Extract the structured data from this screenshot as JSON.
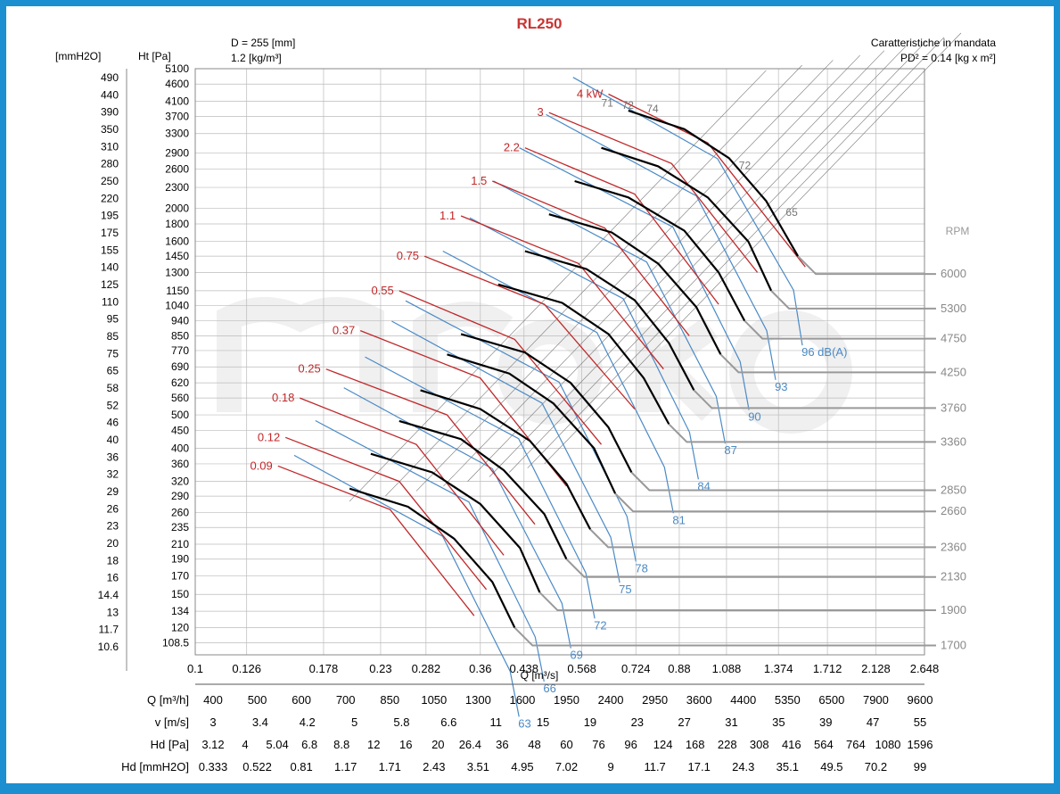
{
  "chart_data": {
    "type": "line",
    "title": "RL250",
    "subtitle_left": [
      "D = 255 [mm]",
      "1.2 [kg/m³]"
    ],
    "subtitle_right": [
      "Caratteristiche in mandata",
      "PD² = 0.14 [kg x m²]"
    ],
    "ylabel_left": "[mmH2O]",
    "ylabel_right": "Ht [Pa]",
    "xlabel": "Q [m³/s]",
    "rpm_label": "RPM",
    "y_scale": "log",
    "x_scale": "log",
    "ylim": [
      100,
      5100
    ],
    "xlim": [
      0.1,
      2.648
    ],
    "y_ticks_pa": [
      5100,
      4600,
      4100,
      3700,
      3300,
      2900,
      2600,
      2300,
      2000,
      1800,
      1600,
      1450,
      1300,
      1150,
      1040,
      940,
      850,
      770,
      690,
      620,
      560,
      500,
      450,
      400,
      360,
      320,
      290,
      260,
      235,
      210,
      190,
      170,
      150,
      134,
      120,
      108.5
    ],
    "y_ticks_mmh2o": [
      490,
      440,
      390,
      350,
      310,
      280,
      250,
      220,
      195,
      175,
      155,
      140,
      125,
      110,
      95,
      85,
      75,
      65,
      58,
      52,
      46,
      40,
      36,
      32,
      29,
      26,
      23,
      20,
      18,
      16,
      14.4,
      13,
      11.7,
      10.6
    ],
    "x_ticks": [
      0.1,
      0.126,
      0.178,
      0.23,
      0.282,
      0.36,
      0.438,
      0.568,
      0.724,
      0.88,
      1.088,
      1.374,
      1.712,
      2.128,
      2.648
    ],
    "rpm_curves": [
      {
        "rpm": "6000",
        "x": [
          0.7,
          0.9,
          1.1,
          1.3,
          1.5
        ],
        "y": [
          3850,
          3400,
          2800,
          2100,
          1450
        ]
      },
      {
        "rpm": "5300",
        "x": [
          0.62,
          0.8,
          1.0,
          1.2,
          1.33
        ],
        "y": [
          3000,
          2650,
          2150,
          1600,
          1150
        ]
      },
      {
        "rpm": "4750",
        "x": [
          0.55,
          0.7,
          0.9,
          1.05,
          1.18
        ],
        "y": [
          2400,
          2150,
          1720,
          1300,
          940
        ]
      },
      {
        "rpm": "4250",
        "x": [
          0.49,
          0.65,
          0.8,
          0.95,
          1.06
        ],
        "y": [
          1920,
          1700,
          1380,
          1030,
          750
        ]
      },
      {
        "rpm": "3760",
        "x": [
          0.44,
          0.58,
          0.72,
          0.84,
          0.94
        ],
        "y": [
          1500,
          1330,
          1080,
          810,
          590
        ]
      },
      {
        "rpm": "3360",
        "x": [
          0.39,
          0.52,
          0.64,
          0.75,
          0.84
        ],
        "y": [
          1200,
          1060,
          860,
          640,
          470
        ]
      },
      {
        "rpm": "2850",
        "x": [
          0.33,
          0.44,
          0.54,
          0.64,
          0.71
        ],
        "y": [
          860,
          760,
          620,
          460,
          340
        ]
      },
      {
        "rpm": "2660",
        "x": [
          0.31,
          0.41,
          0.5,
          0.6,
          0.66
        ],
        "y": [
          750,
          660,
          540,
          400,
          295
        ]
      },
      {
        "rpm": "2360",
        "x": [
          0.275,
          0.36,
          0.45,
          0.53,
          0.59
        ],
        "y": [
          590,
          520,
          420,
          315,
          232
        ]
      },
      {
        "rpm": "2130",
        "x": [
          0.25,
          0.33,
          0.4,
          0.48,
          0.53
        ],
        "y": [
          480,
          425,
          345,
          257,
          190
        ]
      },
      {
        "rpm": "1900",
        "x": [
          0.22,
          0.29,
          0.36,
          0.43,
          0.47
        ],
        "y": [
          385,
          340,
          275,
          205,
          152
        ]
      },
      {
        "rpm": "1700",
        "x": [
          0.2,
          0.26,
          0.32,
          0.38,
          0.42
        ],
        "y": [
          305,
          270,
          218,
          163,
          120
        ]
      }
    ],
    "power_curves": [
      {
        "label": "4 kW",
        "x": [
          0.64,
          1.0,
          1.55
        ],
        "y": [
          4300,
          3100,
          1350
        ]
      },
      {
        "label": "3",
        "x": [
          0.49,
          0.85,
          1.25
        ],
        "y": [
          3800,
          2700,
          1300
        ]
      },
      {
        "label": "2.2",
        "x": [
          0.44,
          0.72,
          1.05
        ],
        "y": [
          3000,
          2200,
          1050
        ]
      },
      {
        "label": "1.5",
        "x": [
          0.38,
          0.63,
          0.92
        ],
        "y": [
          2400,
          1750,
          850
        ]
      },
      {
        "label": "1.1",
        "x": [
          0.33,
          0.56,
          0.82
        ],
        "y": [
          1900,
          1380,
          680
        ]
      },
      {
        "label": "0.75",
        "x": [
          0.28,
          0.48,
          0.72
        ],
        "y": [
          1450,
          1050,
          520
        ]
      },
      {
        "label": "0.55",
        "x": [
          0.25,
          0.42,
          0.62
        ],
        "y": [
          1150,
          830,
          410
        ]
      },
      {
        "label": "0.37",
        "x": [
          0.21,
          0.36,
          0.53
        ],
        "y": [
          880,
          640,
          310
        ]
      },
      {
        "label": "0.25",
        "x": [
          0.18,
          0.31,
          0.46
        ],
        "y": [
          680,
          500,
          240
        ]
      },
      {
        "label": "0.18",
        "x": [
          0.16,
          0.27,
          0.4
        ],
        "y": [
          560,
          410,
          195
        ]
      },
      {
        "label": "0.12",
        "x": [
          0.15,
          0.25,
          0.37
        ],
        "y": [
          430,
          320,
          155
        ]
      },
      {
        "label": "0.09",
        "x": [
          0.145,
          0.24,
          0.35
        ],
        "y": [
          355,
          265,
          130
        ]
      }
    ],
    "noise_labels": [
      "96 dB(A)",
      "93",
      "90",
      "87",
      "84",
      "81",
      "78",
      "75",
      "72",
      "69",
      "66",
      "63"
    ],
    "efficiency_labels": [
      "65",
      "71",
      "72",
      "74",
      "72"
    ],
    "table": {
      "rows": [
        {
          "label": "Q [m³/h]",
          "values": [
            "400",
            "500",
            "600",
            "700",
            "850",
            "1050",
            "1300",
            "1600",
            "1950",
            "2400",
            "2950",
            "3600",
            "4400",
            "5350",
            "6500",
            "7900",
            "9600"
          ]
        },
        {
          "label": "v [m/s]",
          "values": [
            "3",
            "3.4",
            "4.2",
            "5",
            "5.8",
            "6.6",
            "11",
            "15",
            "19",
            "23",
            "27",
            "31",
            "35",
            "39",
            "47",
            "55"
          ]
        },
        {
          "label": "Hd [Pa]",
          "values": [
            "3.12",
            "4",
            "5.04",
            "6.8",
            "8.8",
            "12",
            "16",
            "20",
            "26.4",
            "36",
            "48",
            "60",
            "76",
            "96",
            "124",
            "168",
            "228",
            "308",
            "416",
            "564",
            "764",
            "1080",
            "1596"
          ]
        },
        {
          "label": "Hd [mmH2O]",
          "values": [
            "0.333",
            "0.522",
            "0.81",
            "1.17",
            "1.71",
            "2.43",
            "3.51",
            "4.95",
            "7.02",
            "9",
            "11.7",
            "17.1",
            "24.3",
            "35.1",
            "49.5",
            "70.2",
            "99"
          ]
        }
      ]
    },
    "colors": {
      "frame": "#1b8fd0",
      "power": "#c0282a",
      "noise": "#4a8ac6",
      "rpm": "#000000",
      "grid": "#bbbbbb",
      "watermark": "#efefef"
    }
  }
}
